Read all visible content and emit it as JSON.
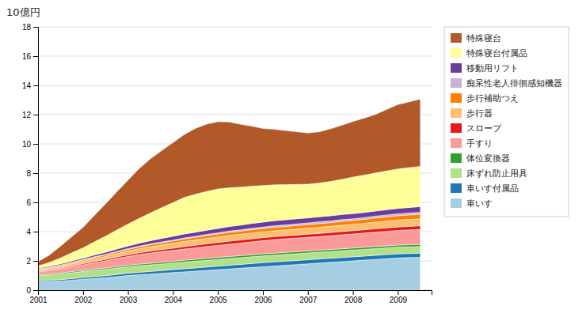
{
  "chart_data": {
    "type": "area",
    "title": "10億円",
    "stacked": true,
    "grid": true,
    "legend": "right",
    "x": [
      2001,
      2001.25,
      2001.5,
      2001.75,
      2002,
      2002.25,
      2002.5,
      2002.75,
      2003,
      2003.25,
      2003.5,
      2003.75,
      2004,
      2004.25,
      2004.5,
      2004.75,
      2005,
      2005.25,
      2005.5,
      2005.75,
      2006,
      2006.25,
      2006.5,
      2006.75,
      2007,
      2007.25,
      2007.5,
      2007.75,
      2008,
      2008.25,
      2008.5,
      2008.75,
      2009,
      2009.5
    ],
    "xlim": [
      2001,
      2009.75
    ],
    "xticks": [
      2001,
      2002,
      2003,
      2004,
      2005,
      2006,
      2007,
      2008,
      2009
    ],
    "ylim": [
      0,
      18
    ],
    "yticks": [
      0,
      2,
      4,
      6,
      8,
      10,
      12,
      14,
      16,
      18
    ],
    "series": [
      {
        "name": "車いす",
        "values": [
          0.55,
          0.58,
          0.62,
          0.68,
          0.75,
          0.8,
          0.85,
          0.92,
          1.0,
          1.05,
          1.1,
          1.15,
          1.2,
          1.25,
          1.3,
          1.35,
          1.4,
          1.45,
          1.5,
          1.55,
          1.6,
          1.65,
          1.7,
          1.75,
          1.8,
          1.85,
          1.9,
          1.95,
          2.0,
          2.05,
          2.1,
          2.15,
          2.2,
          2.25
        ]
      },
      {
        "name": "車いす付属品",
        "values": [
          0.08,
          0.09,
          0.1,
          0.11,
          0.12,
          0.13,
          0.14,
          0.15,
          0.16,
          0.17,
          0.18,
          0.19,
          0.2,
          0.21,
          0.22,
          0.23,
          0.24,
          0.25,
          0.26,
          0.27,
          0.28,
          0.28,
          0.28,
          0.28,
          0.28,
          0.28,
          0.28,
          0.28,
          0.28,
          0.28,
          0.28,
          0.28,
          0.28,
          0.28
        ]
      },
      {
        "name": "床ずれ防止用具",
        "values": [
          0.35,
          0.37,
          0.38,
          0.4,
          0.41,
          0.42,
          0.43,
          0.44,
          0.44,
          0.45,
          0.45,
          0.45,
          0.45,
          0.46,
          0.46,
          0.46,
          0.46,
          0.46,
          0.46,
          0.46,
          0.46,
          0.46,
          0.46,
          0.46,
          0.46,
          0.46,
          0.46,
          0.46,
          0.46,
          0.46,
          0.46,
          0.46,
          0.46,
          0.46
        ]
      },
      {
        "name": "体位変換器",
        "values": [
          0.06,
          0.07,
          0.07,
          0.08,
          0.08,
          0.09,
          0.09,
          0.1,
          0.1,
          0.11,
          0.11,
          0.12,
          0.12,
          0.13,
          0.13,
          0.14,
          0.14,
          0.14,
          0.14,
          0.14,
          0.14,
          0.14,
          0.14,
          0.14,
          0.14,
          0.14,
          0.14,
          0.14,
          0.14,
          0.14,
          0.14,
          0.14,
          0.14,
          0.14
        ]
      },
      {
        "name": "手すり",
        "values": [
          0.2,
          0.23,
          0.27,
          0.32,
          0.37,
          0.43,
          0.49,
          0.55,
          0.6,
          0.65,
          0.7,
          0.72,
          0.74,
          0.76,
          0.78,
          0.8,
          0.82,
          0.84,
          0.86,
          0.88,
          0.9,
          0.92,
          0.93,
          0.93,
          0.93,
          0.93,
          0.94,
          0.95,
          0.96,
          0.97,
          0.98,
          0.99,
          1.0,
          1.02
        ]
      },
      {
        "name": "スロープ",
        "values": [
          0.04,
          0.05,
          0.06,
          0.07,
          0.08,
          0.09,
          0.1,
          0.11,
          0.12,
          0.13,
          0.14,
          0.15,
          0.16,
          0.17,
          0.18,
          0.19,
          0.2,
          0.21,
          0.21,
          0.21,
          0.21,
          0.21,
          0.21,
          0.21,
          0.22,
          0.22,
          0.22,
          0.23,
          0.23,
          0.23,
          0.24,
          0.24,
          0.24,
          0.25
        ]
      },
      {
        "name": "歩行器",
        "values": [
          0.1,
          0.11,
          0.13,
          0.15,
          0.17,
          0.19,
          0.21,
          0.23,
          0.25,
          0.27,
          0.29,
          0.31,
          0.33,
          0.35,
          0.36,
          0.37,
          0.38,
          0.39,
          0.39,
          0.4,
          0.4,
          0.4,
          0.4,
          0.41,
          0.41,
          0.42,
          0.42,
          0.43,
          0.43,
          0.44,
          0.45,
          0.46,
          0.47,
          0.48
        ]
      },
      {
        "name": "歩行補助つえ",
        "values": [
          0.04,
          0.05,
          0.06,
          0.07,
          0.08,
          0.09,
          0.1,
          0.11,
          0.12,
          0.13,
          0.14,
          0.15,
          0.16,
          0.17,
          0.18,
          0.19,
          0.2,
          0.21,
          0.21,
          0.22,
          0.22,
          0.23,
          0.23,
          0.24,
          0.24,
          0.25,
          0.25,
          0.26,
          0.26,
          0.27,
          0.28,
          0.29,
          0.3,
          0.31
        ]
      },
      {
        "name": "痴呆性老人徘徊感知機器",
        "values": [
          0.02,
          0.02,
          0.03,
          0.03,
          0.03,
          0.04,
          0.04,
          0.04,
          0.05,
          0.05,
          0.05,
          0.06,
          0.06,
          0.07,
          0.07,
          0.08,
          0.08,
          0.09,
          0.09,
          0.1,
          0.1,
          0.11,
          0.11,
          0.11,
          0.11,
          0.12,
          0.12,
          0.12,
          0.12,
          0.12,
          0.13,
          0.13,
          0.13,
          0.14
        ]
      },
      {
        "name": "移動用リフト",
        "values": [
          0.06,
          0.07,
          0.08,
          0.09,
          0.1,
          0.12,
          0.14,
          0.16,
          0.18,
          0.2,
          0.22,
          0.24,
          0.26,
          0.27,
          0.28,
          0.29,
          0.3,
          0.31,
          0.32,
          0.33,
          0.34,
          0.35,
          0.35,
          0.35,
          0.35,
          0.35,
          0.35,
          0.35,
          0.35,
          0.35,
          0.35,
          0.36,
          0.37,
          0.38
        ]
      },
      {
        "name": "特殊寝台付属品",
        "values": [
          0.15,
          0.25,
          0.4,
          0.55,
          0.7,
          0.9,
          1.1,
          1.3,
          1.5,
          1.7,
          1.9,
          2.1,
          2.3,
          2.5,
          2.6,
          2.65,
          2.7,
          2.65,
          2.6,
          2.55,
          2.5,
          2.45,
          2.4,
          2.35,
          2.3,
          2.3,
          2.35,
          2.4,
          2.5,
          2.55,
          2.6,
          2.65,
          2.7,
          2.75
        ]
      },
      {
        "name": "特殊寝台",
        "values": [
          0.3,
          0.5,
          0.8,
          1.1,
          1.4,
          1.8,
          2.2,
          2.6,
          3.0,
          3.4,
          3.7,
          3.9,
          4.1,
          4.3,
          4.5,
          4.6,
          4.6,
          4.5,
          4.3,
          4.1,
          3.9,
          3.8,
          3.7,
          3.6,
          3.5,
          3.5,
          3.6,
          3.7,
          3.8,
          3.9,
          4.0,
          4.2,
          4.4,
          4.6
        ]
      }
    ]
  }
}
